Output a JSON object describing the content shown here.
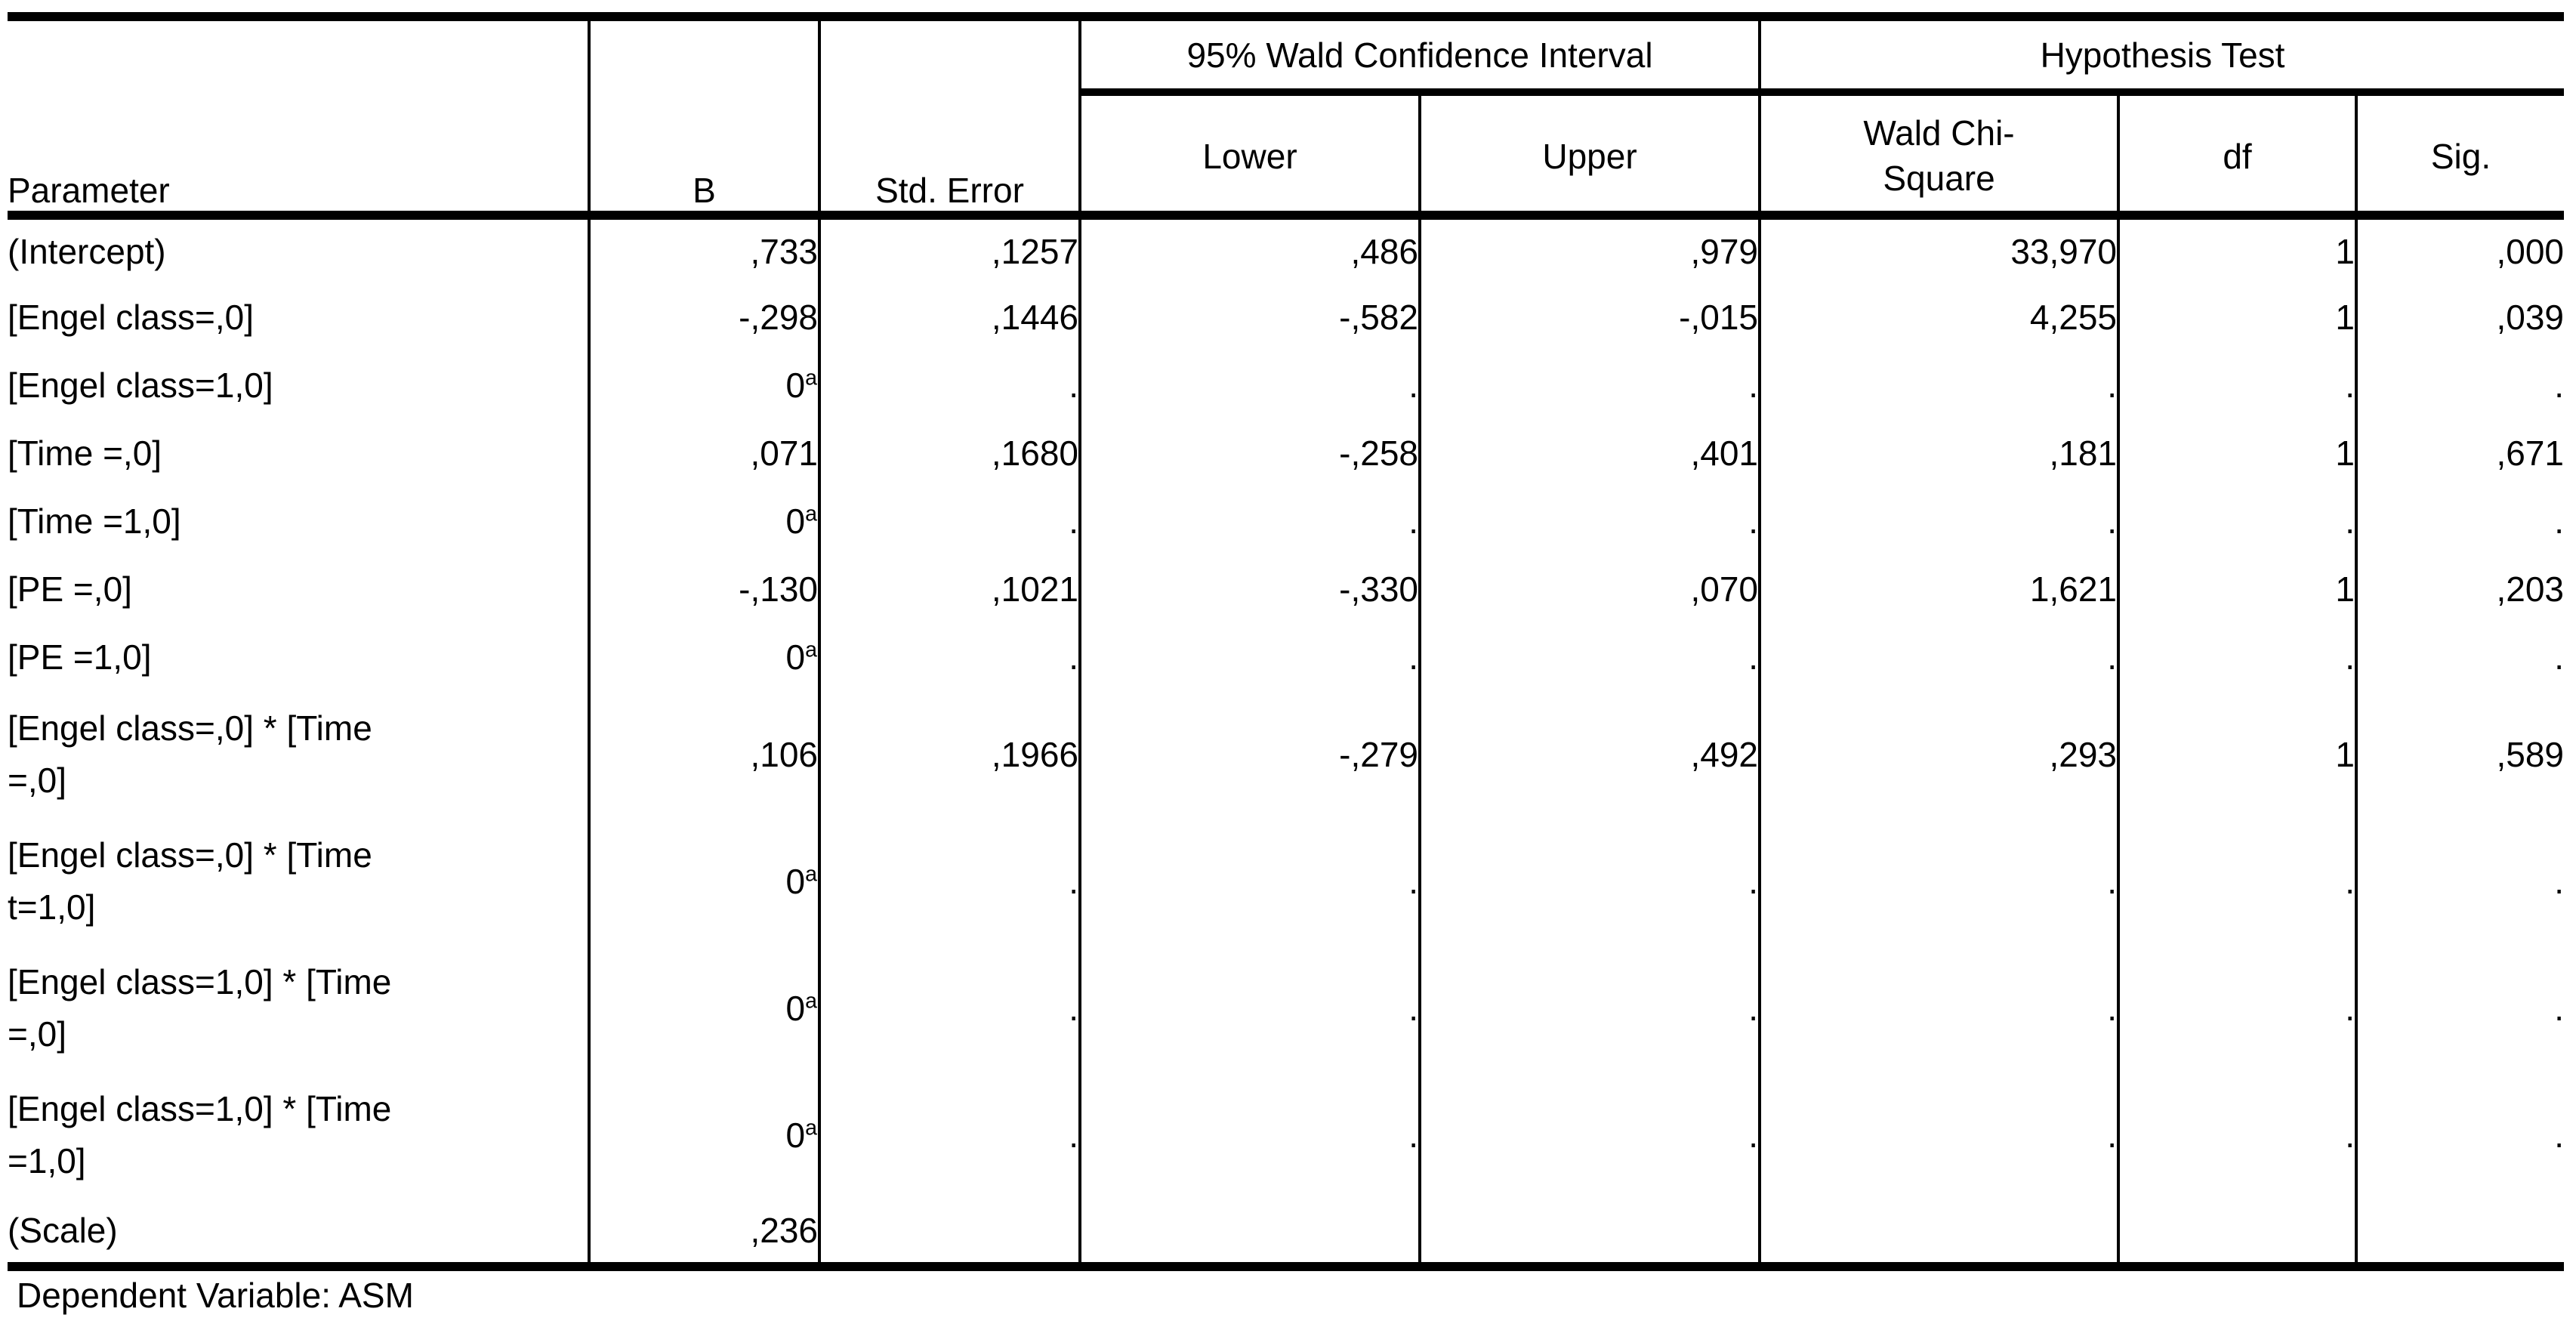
{
  "chart_data": {
    "type": "table",
    "column_groups": [
      {
        "label": "",
        "span": 3
      },
      {
        "label": "95% Wald Confidence Interval",
        "span": 2
      },
      {
        "label": "Hypothesis Test",
        "span": 3
      }
    ],
    "columns": [
      "Parameter",
      "B",
      "Std. Error",
      "Lower",
      "Upper",
      "Wald Chi-Square",
      "df",
      "Sig."
    ],
    "rows": [
      [
        "(Intercept)",
        ",733",
        ",1257",
        ",486",
        ",979",
        "33,970",
        "1",
        ",000"
      ],
      [
        "[Engel class=,0]",
        "-,298",
        ",1446",
        "-,582",
        "-,015",
        "4,255",
        "1",
        ",039"
      ],
      [
        "[Engel class=1,0]",
        "0a",
        ".",
        ".",
        ".",
        ".",
        ".",
        "."
      ],
      [
        "[Time =,0]",
        ",071",
        ",1680",
        "-,258",
        ",401",
        ",181",
        "1",
        ",671"
      ],
      [
        "[Time =1,0]",
        "0a",
        ".",
        ".",
        ".",
        ".",
        ".",
        "."
      ],
      [
        "[PE =,0]",
        "-,130",
        ",1021",
        "-,330",
        ",070",
        "1,621",
        "1",
        ",203"
      ],
      [
        "[PE =1,0]",
        "0a",
        ".",
        ".",
        ".",
        ".",
        ".",
        "."
      ],
      [
        "[Engel class=,0] * [Time =,0]",
        ",106",
        ",1966",
        "-,279",
        ",492",
        ",293",
        "1",
        ",589"
      ],
      [
        "[Engel class=,0] * [Time t=1,0]",
        "0a",
        ".",
        ".",
        ".",
        ".",
        ".",
        "."
      ],
      [
        "[Engel class=1,0] * [Time =,0]",
        "0a",
        ".",
        ".",
        ".",
        ".",
        ".",
        "."
      ],
      [
        "[Engel class=1,0] * [Time =1,0]",
        "0a",
        ".",
        ".",
        ".",
        ".",
        ".",
        "."
      ],
      [
        "(Scale)",
        ",236",
        "",
        "",
        "",
        "",
        "",
        ""
      ]
    ],
    "footnote": "Dependent Variable: ASM",
    "layout_hints": {
      "grid": "off",
      "decimal_separator": ",",
      "redundant_marker": "a"
    }
  },
  "table": {
    "headers": {
      "parameter": "Parameter",
      "b": "B",
      "std_error": "Std. Error",
      "ci_group": "95% Wald Confidence Interval",
      "lower": "Lower",
      "upper": "Upper",
      "hypothesis_group": "Hypothesis Test",
      "wald_line1": "Wald Chi-",
      "wald_line2": "Square",
      "df": "df",
      "sig": "Sig."
    },
    "rows": [
      {
        "param_lines": [
          "(Intercept)"
        ],
        "b": ",733",
        "b_sup": "",
        "se": ",1257",
        "lower": ",486",
        "upper": ",979",
        "wald": "33,970",
        "df": "1",
        "sig": ",000"
      },
      {
        "param_lines": [
          "[Engel class=,0]"
        ],
        "b": "-,298",
        "b_sup": "",
        "se": ",1446",
        "lower": "-,582",
        "upper": "-,015",
        "wald": "4,255",
        "df": "1",
        "sig": ",039"
      },
      {
        "param_lines": [
          "[Engel class=1,0]"
        ],
        "b": "0",
        "b_sup": "a",
        "se": ".",
        "lower": ".",
        "upper": ".",
        "wald": ".",
        "df": ".",
        "sig": "."
      },
      {
        "param_lines": [
          "[Time =,0]"
        ],
        "b": ",071",
        "b_sup": "",
        "se": ",1680",
        "lower": "-,258",
        "upper": ",401",
        "wald": ",181",
        "df": "1",
        "sig": ",671"
      },
      {
        "param_lines": [
          "[Time =1,0]"
        ],
        "b": "0",
        "b_sup": "a",
        "se": ".",
        "lower": ".",
        "upper": ".",
        "wald": ".",
        "df": ".",
        "sig": "."
      },
      {
        "param_lines": [
          "[PE =,0]"
        ],
        "b": "-,130",
        "b_sup": "",
        "se": ",1021",
        "lower": "-,330",
        "upper": ",070",
        "wald": "1,621",
        "df": "1",
        "sig": ",203"
      },
      {
        "param_lines": [
          "[PE =1,0]"
        ],
        "b": "0",
        "b_sup": "a",
        "se": ".",
        "lower": ".",
        "upper": ".",
        "wald": ".",
        "df": ".",
        "sig": "."
      },
      {
        "param_lines": [
          "[Engel class=,0] * [Time",
          "=,0]"
        ],
        "b": ",106",
        "b_sup": "",
        "se": ",1966",
        "lower": "-,279",
        "upper": ",492",
        "wald": ",293",
        "df": "1",
        "sig": ",589"
      },
      {
        "param_lines": [
          "[Engel class=,0] * [Time",
          "t=1,0]"
        ],
        "b": "0",
        "b_sup": "a",
        "se": ".",
        "lower": ".",
        "upper": ".",
        "wald": ".",
        "df": ".",
        "sig": "."
      },
      {
        "param_lines": [
          "[Engel class=1,0] * [Time",
          "=,0]"
        ],
        "b": "0",
        "b_sup": "a",
        "se": ".",
        "lower": ".",
        "upper": ".",
        "wald": ".",
        "df": ".",
        "sig": "."
      },
      {
        "param_lines": [
          "[Engel class=1,0] * [Time",
          "=1,0]"
        ],
        "b": "0",
        "b_sup": "a",
        "se": ".",
        "lower": ".",
        "upper": ".",
        "wald": ".",
        "df": ".",
        "sig": "."
      },
      {
        "param_lines": [
          "(Scale)"
        ],
        "b": ",236",
        "b_sup": "",
        "se": "",
        "lower": "",
        "upper": "",
        "wald": "",
        "df": "",
        "sig": ""
      }
    ],
    "footnote": "Dependent Variable: ASM"
  }
}
